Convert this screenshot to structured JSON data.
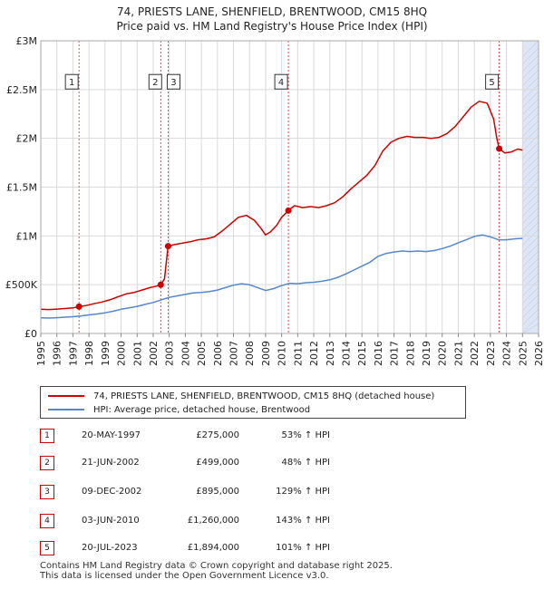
{
  "header": {
    "title_line1": "74, PRIESTS LANE, SHENFIELD, BRENTWOOD, CM15 8HQ",
    "title_line2": "Price paid vs. HM Land Registry's House Price Index (HPI)"
  },
  "colors": {
    "property_line": "#cc0000",
    "hpi_line": "#5588cc",
    "grid": "#d9d9d9",
    "marker_line": "#cc4444",
    "shade": "#dde6f5"
  },
  "chart_data": {
    "type": "line",
    "x_range": [
      1995,
      2026
    ],
    "ylim": [
      0,
      3000000
    ],
    "y_ticks": [
      {
        "value": 0,
        "label": "£0"
      },
      {
        "value": 500000,
        "label": "£500K"
      },
      {
        "value": 1000000,
        "label": "£1M"
      },
      {
        "value": 1500000,
        "label": "£1.5M"
      },
      {
        "value": 2000000,
        "label": "£2M"
      },
      {
        "value": 2500000,
        "label": "£2.5M"
      },
      {
        "value": 3000000,
        "label": "£3M"
      }
    ],
    "x_ticks": [
      "1995",
      "1996",
      "1997",
      "1998",
      "1999",
      "2000",
      "2001",
      "2002",
      "2003",
      "2004",
      "2005",
      "2006",
      "2007",
      "2008",
      "2009",
      "2010",
      "2011",
      "2012",
      "2013",
      "2014",
      "2015",
      "2016",
      "2017",
      "2018",
      "2019",
      "2020",
      "2021",
      "2022",
      "2023",
      "2024",
      "2025",
      "2026"
    ],
    "future_shade_start": 2025.0,
    "series": [
      {
        "name": "74, PRIESTS LANE, SHENFIELD, BRENTWOOD, CM15 8HQ (detached house)",
        "points": [
          [
            1995.0,
            248000
          ],
          [
            1995.5,
            245000
          ],
          [
            1996.0,
            250000
          ],
          [
            1996.5,
            255000
          ],
          [
            1997.0,
            262000
          ],
          [
            1997.38,
            275000
          ],
          [
            1997.8,
            285000
          ],
          [
            1998.3,
            305000
          ],
          [
            1998.8,
            322000
          ],
          [
            1999.3,
            345000
          ],
          [
            1999.8,
            375000
          ],
          [
            2000.3,
            405000
          ],
          [
            2000.8,
            420000
          ],
          [
            2001.3,
            445000
          ],
          [
            2001.8,
            470000
          ],
          [
            2002.2,
            485000
          ],
          [
            2002.47,
            499000
          ],
          [
            2002.7,
            560000
          ],
          [
            2002.93,
            895000
          ],
          [
            2003.3,
            910000
          ],
          [
            2003.8,
            925000
          ],
          [
            2004.3,
            940000
          ],
          [
            2004.8,
            960000
          ],
          [
            2005.3,
            970000
          ],
          [
            2005.8,
            990000
          ],
          [
            2006.3,
            1050000
          ],
          [
            2006.8,
            1120000
          ],
          [
            2007.3,
            1190000
          ],
          [
            2007.8,
            1210000
          ],
          [
            2008.3,
            1160000
          ],
          [
            2008.7,
            1080000
          ],
          [
            2009.0,
            1010000
          ],
          [
            2009.3,
            1040000
          ],
          [
            2009.7,
            1110000
          ],
          [
            2010.0,
            1190000
          ],
          [
            2010.42,
            1260000
          ],
          [
            2010.8,
            1310000
          ],
          [
            2011.3,
            1290000
          ],
          [
            2011.8,
            1300000
          ],
          [
            2012.3,
            1290000
          ],
          [
            2012.8,
            1310000
          ],
          [
            2013.3,
            1340000
          ],
          [
            2013.8,
            1400000
          ],
          [
            2014.3,
            1480000
          ],
          [
            2014.8,
            1550000
          ],
          [
            2015.3,
            1620000
          ],
          [
            2015.8,
            1720000
          ],
          [
            2016.3,
            1870000
          ],
          [
            2016.8,
            1960000
          ],
          [
            2017.3,
            2000000
          ],
          [
            2017.8,
            2020000
          ],
          [
            2018.3,
            2010000
          ],
          [
            2018.8,
            2010000
          ],
          [
            2019.3,
            2000000
          ],
          [
            2019.8,
            2010000
          ],
          [
            2020.3,
            2050000
          ],
          [
            2020.8,
            2120000
          ],
          [
            2021.3,
            2220000
          ],
          [
            2021.8,
            2320000
          ],
          [
            2022.3,
            2380000
          ],
          [
            2022.8,
            2360000
          ],
          [
            2023.2,
            2200000
          ],
          [
            2023.4,
            2000000
          ],
          [
            2023.55,
            1894000
          ],
          [
            2023.9,
            1850000
          ],
          [
            2024.3,
            1860000
          ],
          [
            2024.7,
            1890000
          ],
          [
            2025.0,
            1880000
          ]
        ]
      },
      {
        "name": "HPI: Average price, detached house, Brentwood",
        "points": [
          [
            1995.0,
            160000
          ],
          [
            1995.5,
            158000
          ],
          [
            1996.0,
            162000
          ],
          [
            1996.5,
            167000
          ],
          [
            1997.0,
            172000
          ],
          [
            1997.5,
            180000
          ],
          [
            1998.0,
            190000
          ],
          [
            1998.5,
            200000
          ],
          [
            1999.0,
            212000
          ],
          [
            1999.5,
            228000
          ],
          [
            2000.0,
            248000
          ],
          [
            2000.5,
            262000
          ],
          [
            2001.0,
            278000
          ],
          [
            2001.5,
            298000
          ],
          [
            2002.0,
            318000
          ],
          [
            2002.5,
            345000
          ],
          [
            2003.0,
            370000
          ],
          [
            2003.5,
            385000
          ],
          [
            2004.0,
            400000
          ],
          [
            2004.5,
            415000
          ],
          [
            2005.0,
            420000
          ],
          [
            2005.5,
            430000
          ],
          [
            2006.0,
            445000
          ],
          [
            2006.5,
            470000
          ],
          [
            2007.0,
            495000
          ],
          [
            2007.5,
            510000
          ],
          [
            2008.0,
            500000
          ],
          [
            2008.5,
            470000
          ],
          [
            2009.0,
            440000
          ],
          [
            2009.5,
            460000
          ],
          [
            2010.0,
            490000
          ],
          [
            2010.5,
            515000
          ],
          [
            2011.0,
            510000
          ],
          [
            2011.5,
            520000
          ],
          [
            2012.0,
            525000
          ],
          [
            2012.5,
            535000
          ],
          [
            2013.0,
            550000
          ],
          [
            2013.5,
            575000
          ],
          [
            2014.0,
            610000
          ],
          [
            2014.5,
            650000
          ],
          [
            2015.0,
            690000
          ],
          [
            2015.5,
            730000
          ],
          [
            2016.0,
            790000
          ],
          [
            2016.5,
            820000
          ],
          [
            2017.0,
            835000
          ],
          [
            2017.5,
            845000
          ],
          [
            2018.0,
            840000
          ],
          [
            2018.5,
            845000
          ],
          [
            2019.0,
            840000
          ],
          [
            2019.5,
            850000
          ],
          [
            2020.0,
            870000
          ],
          [
            2020.5,
            895000
          ],
          [
            2021.0,
            930000
          ],
          [
            2021.5,
            960000
          ],
          [
            2022.0,
            995000
          ],
          [
            2022.5,
            1010000
          ],
          [
            2023.0,
            990000
          ],
          [
            2023.5,
            960000
          ],
          [
            2024.0,
            960000
          ],
          [
            2024.5,
            970000
          ],
          [
            2025.0,
            975000
          ]
        ]
      }
    ],
    "sales": [
      {
        "num": "1",
        "x": 1997.38,
        "price": 275000
      },
      {
        "num": "2",
        "x": 2002.47,
        "price": 499000
      },
      {
        "num": "3",
        "x": 2002.93,
        "price": 895000
      },
      {
        "num": "4",
        "x": 2010.42,
        "price": 1260000
      },
      {
        "num": "5",
        "x": 2023.55,
        "price": 1894000
      }
    ]
  },
  "legend": {
    "property_label": "74, PRIESTS LANE, SHENFIELD, BRENTWOOD, CM15 8HQ (detached house)",
    "hpi_label": "HPI: Average price, detached house, Brentwood"
  },
  "transactions": [
    {
      "num": "1",
      "date": "20-MAY-1997",
      "price": "£275,000",
      "hpi": "53% ↑ HPI"
    },
    {
      "num": "2",
      "date": "21-JUN-2002",
      "price": "£499,000",
      "hpi": "48% ↑ HPI"
    },
    {
      "num": "3",
      "date": "09-DEC-2002",
      "price": "£895,000",
      "hpi": "129% ↑ HPI"
    },
    {
      "num": "4",
      "date": "03-JUN-2010",
      "price": "£1,260,000",
      "hpi": "143% ↑ HPI"
    },
    {
      "num": "5",
      "date": "20-JUL-2023",
      "price": "£1,894,000",
      "hpi": "101% ↑ HPI"
    }
  ],
  "footer": {
    "line1": "Contains HM Land Registry data © Crown copyright and database right 2025.",
    "line2": "This data is licensed under the Open Government Licence v3.0."
  }
}
